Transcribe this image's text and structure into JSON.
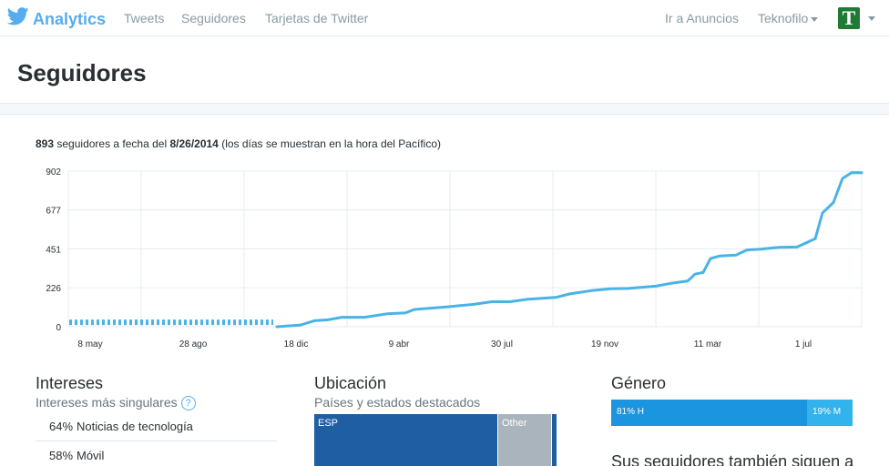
{
  "nav": {
    "brand": "Analytics",
    "links": [
      "Tweets",
      "Seguidores",
      "Tarjetas de Twitter"
    ],
    "ads": "Ir a Anuncios",
    "account": "Teknofilo",
    "avatar_letter": "T"
  },
  "page": {
    "title": "Seguidores"
  },
  "summary": {
    "count": "893",
    "text1": "seguidores a fecha del",
    "date": "8/26/2014",
    "text2": "(los días se muestran en la hora del Pacífico)"
  },
  "chart_data": {
    "type": "line",
    "color": "#4ab3e5",
    "x_tick_labels": [
      "8 may",
      "28 ago",
      "18 dic",
      "9 abr",
      "30 jul",
      "19 nov",
      "11 mar",
      "1 jul"
    ],
    "y_tick_labels": [
      "0",
      "226",
      "451",
      "677",
      "902"
    ],
    "ylim": [
      0,
      902
    ],
    "grid": true,
    "estimated_segment": {
      "from": "8 may",
      "to": "18 dic",
      "value": 15,
      "style": "dashed"
    },
    "series": [
      {
        "x": [
          "18 dic",
          "9 abr",
          "30 jul",
          "19 nov",
          "11 mar",
          "1 jul",
          "8/26/2014"
        ],
        "values": [
          0,
          70,
          145,
          225,
          300,
          460,
          893
        ]
      }
    ]
  },
  "interests": {
    "title": "Intereses",
    "subtitle": "Intereses más singulares",
    "help": "?",
    "items": [
      {
        "pct": "64%",
        "label": "Noticias de tecnología"
      },
      {
        "pct": "58%",
        "label": "Móvil"
      }
    ]
  },
  "location": {
    "title": "Ubicación",
    "subtitle": "Países y estados destacados",
    "cells": [
      {
        "label": "ESP",
        "color": "#1f5ea2"
      },
      {
        "label": "Other",
        "color": "#a9b4bc"
      },
      {
        "label": "",
        "color": "#1f5ea2"
      }
    ]
  },
  "gender": {
    "title": "Género",
    "male": {
      "label": "81% H",
      "value": 81,
      "color": "#1b95e0"
    },
    "female": {
      "label": "19% M",
      "value": 19,
      "color": "#33b3ed"
    }
  },
  "also_follow": {
    "title": "Sus seguidores también siguen a"
  }
}
